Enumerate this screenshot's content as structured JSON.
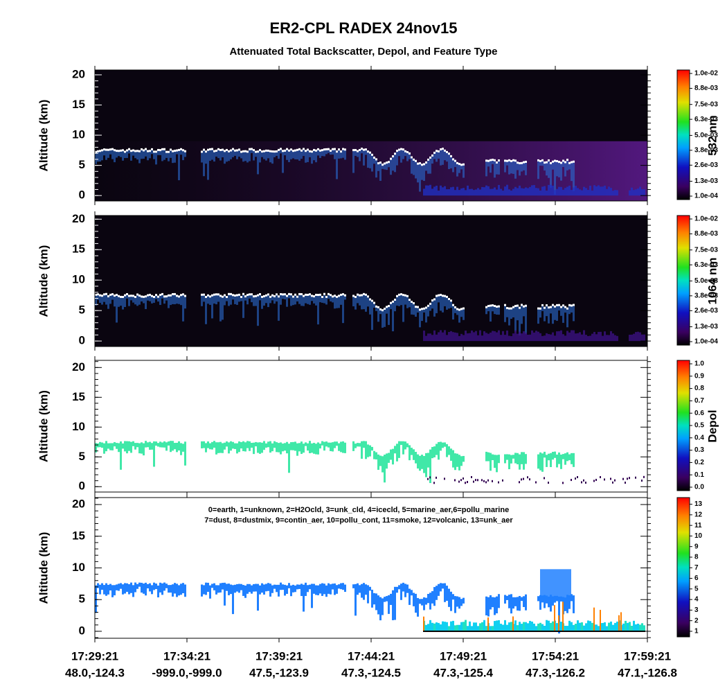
{
  "chart_data": {
    "type": "curtain",
    "title": "ER2-CPL RADEX 24nov15",
    "subtitle": "Attenuated Total Backscatter, Depol, and Feature Type",
    "categories": [
      "17:29:21",
      "17:34:21",
      "17:39:21",
      "17:44:21",
      "17:49:21",
      "17:54:21",
      "17:59:21"
    ],
    "category_sublabels": [
      "48.0,-124.3",
      "-999.0,-999.0",
      "47.5,-123.9",
      "47.3,-124.5",
      "47.3,-125.4",
      "47.3,-126.2",
      "47.1,-126.8"
    ],
    "panels": [
      {
        "ylabel": "Altitude (km)",
        "ylim": [
          -0.9,
          20.8
        ],
        "yticks": [
          0,
          5,
          10,
          15,
          20
        ],
        "colorbar": {
          "label": "532 nm",
          "clim": [
            0.0001,
            0.01
          ],
          "ticks": [
            {
              "value": 0.01,
              "label": "1.0e-02"
            },
            {
              "value": 0.0088,
              "label": "8.8e-03"
            },
            {
              "value": 0.0075,
              "label": "7.5e-03"
            },
            {
              "value": 0.0063,
              "label": "6.3e-03"
            },
            {
              "value": 0.005,
              "label": "5.0e-03"
            },
            {
              "value": 0.0038,
              "label": "3.8e-03"
            },
            {
              "value": 0.0026,
              "label": "2.6e-03"
            },
            {
              "value": 0.0013,
              "label": "1.3e-03"
            },
            {
              "value": 0.0001,
              "label": "1.0e-04"
            }
          ]
        }
      },
      {
        "ylabel": "Altitude (km)",
        "ylim": [
          -0.9,
          20.6
        ],
        "yticks": [
          0,
          5,
          10,
          15,
          20
        ],
        "colorbar": {
          "label": "1064 nm",
          "clim": [
            0.0001,
            0.01
          ],
          "ticks": [
            {
              "value": 0.01,
              "label": "1.0e-02"
            },
            {
              "value": 0.0088,
              "label": "8.8e-03"
            },
            {
              "value": 0.0075,
              "label": "7.5e-03"
            },
            {
              "value": 0.0063,
              "label": "6.3e-03"
            },
            {
              "value": 0.005,
              "label": "5.0e-03"
            },
            {
              "value": 0.0038,
              "label": "3.8e-03"
            },
            {
              "value": 0.0026,
              "label": "2.6e-03"
            },
            {
              "value": 0.0013,
              "label": "1.3e-03"
            },
            {
              "value": 0.0001,
              "label": "1.0e-04"
            }
          ]
        }
      },
      {
        "ylabel": "Altitude (km)",
        "ylim": [
          -0.9,
          21.2
        ],
        "yticks": [
          0,
          5,
          10,
          15,
          20
        ],
        "colorbar": {
          "label": "Depol",
          "clim": [
            0,
            1
          ],
          "ticks": [
            {
              "value": 1,
              "label": "1.0"
            },
            0.9,
            0.8,
            0.7,
            0.6,
            0.5,
            0.4,
            0.3,
            0.2,
            0.1,
            {
              "value": 0,
              "label": "0.0"
            }
          ]
        }
      },
      {
        "ylabel": "Altitude (km)",
        "ylim": [
          -1.1,
          21.1
        ],
        "yticks": [
          0,
          5,
          10,
          15,
          20
        ],
        "annotations": [
          "0=earth, 1=unknown, 2=H2Ocld, 3=unk_cld, 4=icecld, 5=marine_aer,6=pollu_marine",
          "7=dust, 8=dustmix, 9=contin_aer, 10=pollu_cont, 11=smoke, 12=volcanic, 13=unk_aer"
        ],
        "colorbar": {
          "clim": [
            0.8,
            13.3
          ],
          "ticks": [
            13,
            12,
            11,
            10,
            9,
            8,
            7,
            6,
            5,
            4,
            3,
            2,
            1
          ]
        }
      }
    ]
  }
}
